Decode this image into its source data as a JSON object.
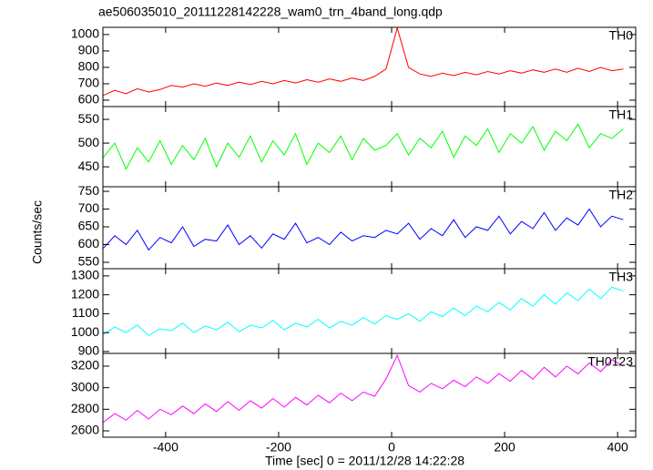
{
  "chart_data": [
    {
      "type": "line",
      "title": "ae506035010_20111228142228_wam0_trn_4band_long.qdp",
      "x": [
        -510,
        -490,
        -470,
        -450,
        -430,
        -410,
        -390,
        -370,
        -350,
        -330,
        -310,
        -290,
        -270,
        -250,
        -230,
        -210,
        -190,
        -170,
        -150,
        -130,
        -110,
        -90,
        -70,
        -50,
        -30,
        -10,
        10,
        30,
        50,
        70,
        90,
        110,
        130,
        150,
        170,
        190,
        210,
        230,
        250,
        270,
        290,
        310,
        330,
        350,
        370,
        390,
        410
      ],
      "series": [
        {
          "name": "TH0",
          "color": "#ff0000",
          "values": [
            630,
            660,
            640,
            670,
            650,
            665,
            690,
            680,
            700,
            685,
            705,
            690,
            710,
            695,
            715,
            700,
            720,
            705,
            725,
            710,
            730,
            715,
            735,
            720,
            745,
            790,
            1040,
            800,
            760,
            745,
            765,
            750,
            770,
            755,
            775,
            760,
            780,
            765,
            785,
            770,
            790,
            770,
            795,
            775,
            800,
            780,
            790
          ]
        }
      ],
      "xlim": [
        -511,
        432
      ],
      "xticks": [
        -400,
        -200,
        0,
        200,
        400
      ],
      "ylim": [
        561,
        1044
      ],
      "yticks": [
        600,
        700,
        800,
        900,
        1000
      ]
    },
    {
      "type": "line",
      "x": [
        -510,
        -490,
        -470,
        -450,
        -430,
        -410,
        -390,
        -370,
        -350,
        -330,
        -310,
        -290,
        -270,
        -250,
        -230,
        -210,
        -190,
        -170,
        -150,
        -130,
        -110,
        -90,
        -70,
        -50,
        -30,
        -10,
        10,
        30,
        50,
        70,
        90,
        110,
        130,
        150,
        170,
        190,
        210,
        230,
        250,
        270,
        290,
        310,
        330,
        350,
        370,
        390,
        410
      ],
      "series": [
        {
          "name": "TH1",
          "color": "#00ff00",
          "values": [
            470,
            500,
            445,
            490,
            460,
            505,
            455,
            495,
            465,
            510,
            450,
            500,
            470,
            515,
            460,
            505,
            475,
            520,
            455,
            500,
            480,
            515,
            465,
            510,
            485,
            495,
            520,
            475,
            510,
            490,
            525,
            470,
            515,
            495,
            530,
            480,
            520,
            500,
            535,
            485,
            525,
            505,
            540,
            490,
            520,
            510,
            530
          ]
        }
      ],
      "xlim": [
        -511,
        432
      ],
      "xticks": [
        -400,
        -200,
        0,
        200,
        400
      ],
      "ylim": [
        408,
        577
      ],
      "yticks": [
        450,
        500,
        550
      ]
    },
    {
      "type": "line",
      "ylabel": "Counts/sec",
      "x": [
        -510,
        -490,
        -470,
        -450,
        -430,
        -410,
        -390,
        -370,
        -350,
        -330,
        -310,
        -290,
        -270,
        -250,
        -230,
        -210,
        -190,
        -170,
        -150,
        -130,
        -110,
        -90,
        -70,
        -50,
        -30,
        -10,
        10,
        30,
        50,
        70,
        90,
        110,
        130,
        150,
        170,
        190,
        210,
        230,
        250,
        270,
        290,
        310,
        330,
        350,
        370,
        390,
        410
      ],
      "series": [
        {
          "name": "TH2",
          "color": "#0000ff",
          "values": [
            590,
            625,
            600,
            640,
            585,
            620,
            605,
            650,
            595,
            615,
            610,
            655,
            600,
            625,
            590,
            630,
            615,
            660,
            605,
            620,
            600,
            635,
            610,
            625,
            620,
            640,
            630,
            660,
            615,
            645,
            625,
            670,
            620,
            650,
            640,
            680,
            630,
            665,
            645,
            690,
            640,
            675,
            655,
            700,
            650,
            680,
            670
          ]
        }
      ],
      "xlim": [
        -511,
        432
      ],
      "xticks": [
        -400,
        -200,
        0,
        200,
        400
      ],
      "ylim": [
        532,
        763
      ],
      "yticks": [
        550,
        600,
        650,
        700,
        750
      ]
    },
    {
      "type": "line",
      "x": [
        -510,
        -490,
        -470,
        -450,
        -430,
        -410,
        -390,
        -370,
        -350,
        -330,
        -310,
        -290,
        -270,
        -250,
        -230,
        -210,
        -190,
        -170,
        -150,
        -130,
        -110,
        -90,
        -70,
        -50,
        -30,
        -10,
        10,
        30,
        50,
        70,
        90,
        110,
        130,
        150,
        170,
        190,
        210,
        230,
        250,
        270,
        290,
        310,
        330,
        350,
        370,
        390,
        410
      ],
      "series": [
        {
          "name": "TH3",
          "color": "#00ffff",
          "values": [
            990,
            1030,
            1000,
            1040,
            985,
            1020,
            1010,
            1050,
            1000,
            1035,
            1015,
            1055,
            1005,
            1040,
            1025,
            1065,
            1015,
            1050,
            1030,
            1070,
            1025,
            1060,
            1040,
            1080,
            1045,
            1090,
            1070,
            1100,
            1060,
            1110,
            1085,
            1130,
            1090,
            1140,
            1110,
            1160,
            1120,
            1180,
            1140,
            1200,
            1150,
            1210,
            1170,
            1230,
            1180,
            1240,
            1220
          ]
        }
      ],
      "xlim": [
        -511,
        432
      ],
      "xticks": [
        -400,
        -200,
        0,
        200,
        400
      ],
      "ylim": [
        890,
        1338
      ],
      "yticks": [
        900,
        1000,
        1100,
        1200,
        1300
      ]
    },
    {
      "type": "line",
      "xlabel": "Time [sec] 0 = 2011/12/28 14:22:28",
      "x": [
        -510,
        -490,
        -470,
        -450,
        -430,
        -410,
        -390,
        -370,
        -350,
        -330,
        -310,
        -290,
        -270,
        -250,
        -230,
        -210,
        -190,
        -170,
        -150,
        -130,
        -110,
        -90,
        -70,
        -50,
        -30,
        -10,
        10,
        30,
        50,
        70,
        90,
        110,
        130,
        150,
        170,
        190,
        210,
        230,
        250,
        270,
        290,
        310,
        330,
        350,
        370,
        390,
        410
      ],
      "series": [
        {
          "name": "TH0123",
          "color": "#ff00ff",
          "values": [
            2680,
            2760,
            2700,
            2790,
            2710,
            2800,
            2750,
            2830,
            2760,
            2850,
            2780,
            2870,
            2790,
            2880,
            2810,
            2900,
            2820,
            2910,
            2840,
            2930,
            2860,
            2950,
            2880,
            2960,
            2920,
            3080,
            3300,
            3020,
            2960,
            3040,
            2990,
            3070,
            3010,
            3100,
            3040,
            3130,
            3060,
            3160,
            3080,
            3190,
            3100,
            3200,
            3130,
            3230,
            3150,
            3260,
            3200
          ]
        }
      ],
      "xlim": [
        -511,
        432
      ],
      "xticks": [
        -400,
        -200,
        0,
        200,
        400
      ],
      "ylim": [
        2541,
        3318
      ],
      "yticks": [
        2600,
        2800,
        3000,
        3200
      ]
    }
  ]
}
